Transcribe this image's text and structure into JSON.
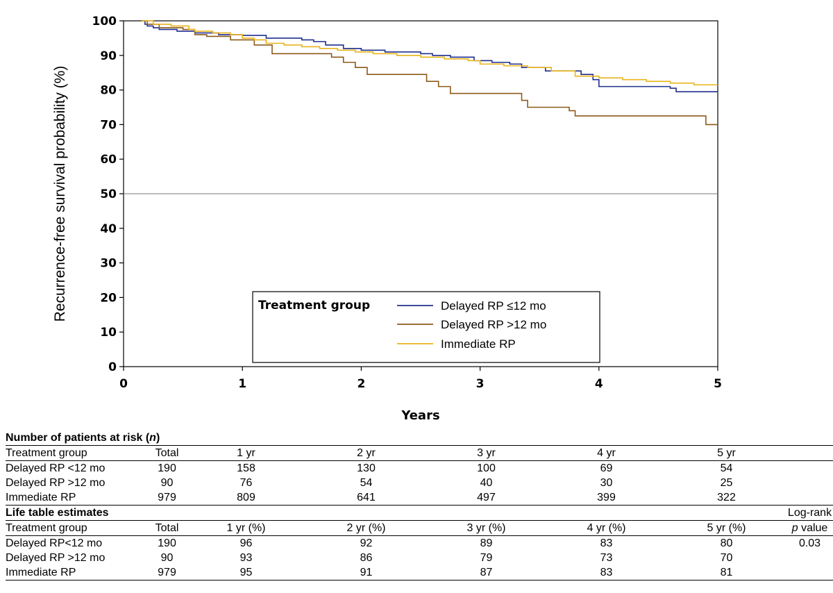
{
  "chart_data": {
    "type": "line",
    "ylabel": "Recurrence-free survival probability (%)",
    "xlabel": "Years",
    "xlim": [
      0,
      5
    ],
    "ylim": [
      0,
      100
    ],
    "xticks": [
      "0",
      "1",
      "2",
      "3",
      "4",
      "5"
    ],
    "yticks": [
      "0",
      "10",
      "20",
      "30",
      "40",
      "50",
      "60",
      "70",
      "80",
      "90",
      "100"
    ],
    "reference_line_y": 50,
    "legend": {
      "title": "Treatment group",
      "placement": "bottom-right",
      "entries": [
        "Delayed RP ≤12 mo",
        "Delayed RP >12 mo",
        "Immediate RP"
      ]
    },
    "series": [
      {
        "name": "Delayed RP ≤12 mo",
        "color": "#1f2f8f",
        "x": [
          0.15,
          0.18,
          0.2,
          0.25,
          0.3,
          0.45,
          0.6,
          0.8,
          1.0,
          1.2,
          1.5,
          1.6,
          1.7,
          1.85,
          2.0,
          2.2,
          2.5,
          2.6,
          2.75,
          2.95,
          3.1,
          3.25,
          3.35,
          3.55,
          3.85,
          3.95,
          4.0,
          4.6,
          4.65,
          5.0
        ],
        "y": [
          100,
          99,
          98.5,
          98,
          97.5,
          97,
          96.5,
          96,
          95.8,
          95,
          94.5,
          94,
          93,
          92,
          91.5,
          91,
          90.5,
          90,
          89.5,
          88.5,
          88,
          87.5,
          86.5,
          85.5,
          84.5,
          83,
          81,
          80.5,
          79.5,
          79.5
        ]
      },
      {
        "name": "Delayed RP >12 mo",
        "color": "#8b5a1a",
        "x": [
          0.15,
          0.2,
          0.3,
          0.5,
          0.6,
          0.7,
          0.9,
          1.0,
          1.1,
          1.25,
          1.75,
          1.85,
          1.95,
          2.05,
          2.55,
          2.65,
          2.75,
          3.35,
          3.4,
          3.75,
          3.8,
          4.85,
          4.9,
          5.0
        ],
        "y": [
          100,
          99,
          98,
          97.5,
          96,
          95.5,
          94.5,
          94.5,
          93,
          90.5,
          89.5,
          88,
          86.5,
          84.5,
          82.5,
          81,
          79,
          77,
          75,
          74,
          72.5,
          72.5,
          70,
          70
        ]
      },
      {
        "name": "Immediate RP",
        "color": "#e8b31a",
        "x": [
          0.15,
          0.25,
          0.4,
          0.55,
          0.6,
          0.75,
          0.9,
          1.0,
          1.1,
          1.2,
          1.35,
          1.5,
          1.65,
          1.8,
          1.95,
          2.1,
          2.3,
          2.5,
          2.7,
          2.9,
          3.0,
          3.2,
          3.4,
          3.6,
          3.8,
          4.0,
          4.2,
          4.4,
          4.6,
          4.8,
          5.0
        ],
        "y": [
          100,
          99,
          98.5,
          97.5,
          97,
          96.5,
          96,
          95,
          94.5,
          93.5,
          93,
          92.5,
          92,
          91.5,
          91,
          90.5,
          90,
          89.5,
          89,
          88.5,
          87.5,
          87,
          86.5,
          85.5,
          84,
          83.5,
          83,
          82.5,
          82,
          81.5,
          81.5
        ]
      }
    ]
  },
  "risk_table": {
    "title": "Number of patients at risk",
    "title_suffix": "n",
    "headers": [
      "Treatment group",
      "Total",
      "1 yr",
      "2 yr",
      "3 yr",
      "4 yr",
      "5 yr"
    ],
    "rows": [
      [
        "Delayed RP <12 mo",
        "190",
        "158",
        "130",
        "100",
        "69",
        "54"
      ],
      [
        "Delayed RP >12 mo",
        "90",
        "76",
        "54",
        "40",
        "30",
        "25"
      ],
      [
        "Immediate RP",
        "979",
        "809",
        "641",
        "497",
        "399",
        "322"
      ]
    ]
  },
  "life_table": {
    "title": "Life table estimates",
    "logrank_header_line1": "Log-rank",
    "logrank_header_p": "p",
    "logrank_header_value": "value",
    "headers": [
      "Treatment group",
      "Total",
      "1 yr (%)",
      "2 yr (%)",
      "3 yr (%)",
      "4 yr (%)",
      "5 yr (%)"
    ],
    "rows": [
      [
        "Delayed RP<12 mo",
        "190",
        "96",
        "92",
        "89",
        "83",
        "80",
        "0.03"
      ],
      [
        "Delayed RP >12 mo",
        "90",
        "93",
        "86",
        "79",
        "73",
        "70",
        ""
      ],
      [
        "Immediate RP",
        "979",
        "95",
        "91",
        "87",
        "83",
        "81",
        ""
      ]
    ]
  }
}
